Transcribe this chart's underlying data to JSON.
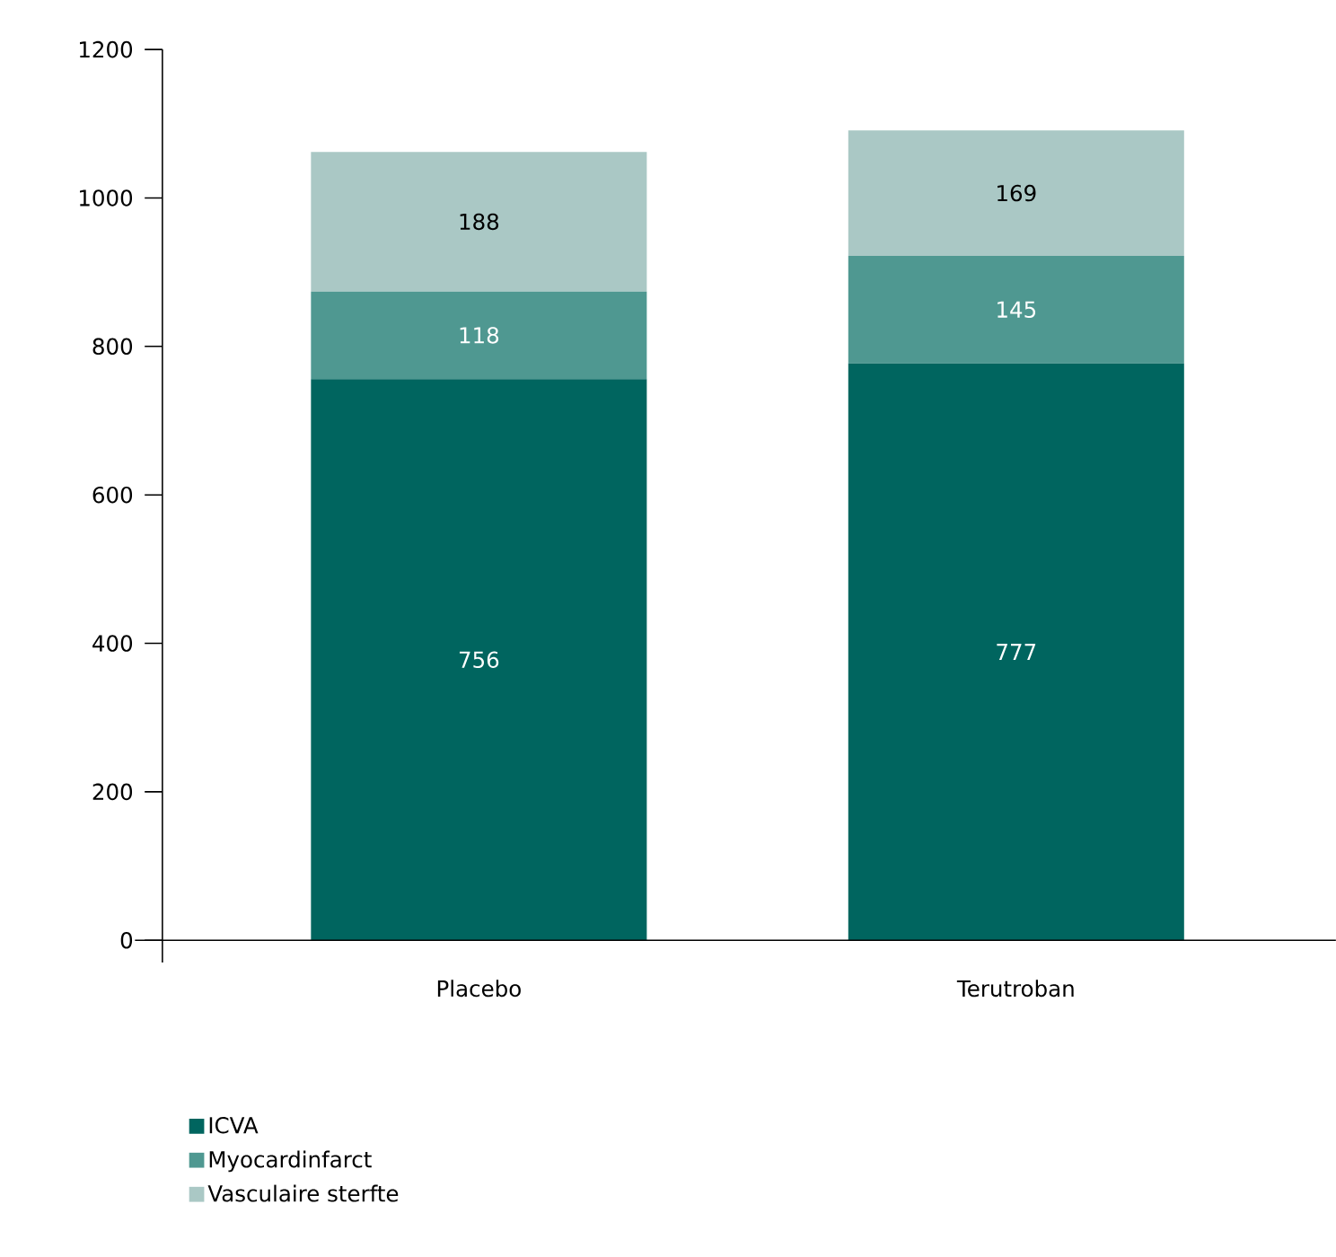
{
  "chart_data": {
    "type": "bar",
    "stacked": true,
    "categories": [
      "Placebo",
      "Terutroban"
    ],
    "series": [
      {
        "name": "ICVA",
        "color": "#00655f",
        "values": [
          756,
          777
        ]
      },
      {
        "name": "Myocardinfarct",
        "color": "#4f9891",
        "values": [
          118,
          145
        ]
      },
      {
        "name": "Vasculaire sterfte",
        "color": "#aac8c5",
        "values": [
          188,
          169
        ]
      }
    ],
    "ylim": [
      0,
      1200
    ],
    "yticks": [
      0,
      200,
      400,
      600,
      800,
      1000,
      1200
    ],
    "data_labels": true,
    "legend": "bottom left"
  }
}
